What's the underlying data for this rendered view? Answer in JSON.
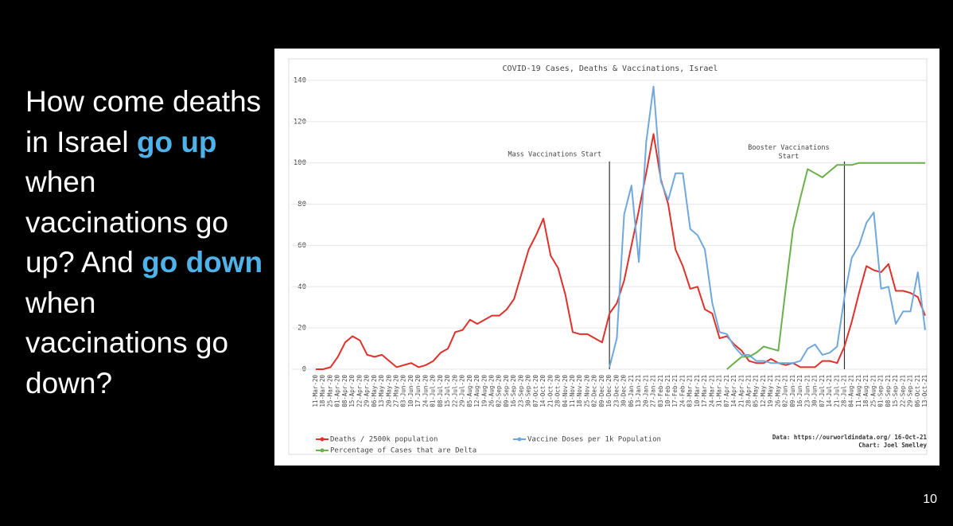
{
  "slide": {
    "headline": [
      {
        "text": "How come deaths in Israel ",
        "highlight": false
      },
      {
        "text": "go up",
        "highlight": true
      },
      {
        "text": " when vaccinations go up? And ",
        "highlight": false
      },
      {
        "text": "go down",
        "highlight": true
      },
      {
        "text": " when vaccinations go down?",
        "highlight": false
      }
    ],
    "page_number": "10"
  },
  "chart_data": {
    "type": "line",
    "title": "COVID-19 Cases, Deaths & Vaccinations, Israel",
    "categories": [
      "11-Mar-20",
      "18-Mar-20",
      "25-Mar-20",
      "01-Apr-20",
      "08-Apr-20",
      "15-Apr-20",
      "22-Apr-20",
      "29-Apr-20",
      "06-May-20",
      "13-May-20",
      "20-May-20",
      "27-May-20",
      "03-Jun-20",
      "10-Jun-20",
      "17-Jun-20",
      "24-Jun-20",
      "01-Jul-20",
      "08-Jul-20",
      "15-Jul-20",
      "22-Jul-20",
      "29-Jul-20",
      "05-Aug-20",
      "12-Aug-20",
      "19-Aug-20",
      "26-Aug-20",
      "02-Sep-20",
      "09-Sep-20",
      "16-Sep-20",
      "23-Sep-20",
      "30-Sep-20",
      "07-Oct-20",
      "14-Oct-20",
      "21-Oct-20",
      "28-Oct-20",
      "04-Nov-20",
      "11-Nov-20",
      "18-Nov-20",
      "25-Nov-20",
      "02-Dec-20",
      "09-Dec-20",
      "16-Dec-20",
      "23-Dec-20",
      "30-Dec-20",
      "06-Jan-21",
      "13-Jan-21",
      "20-Jan-21",
      "27-Jan-21",
      "03-Feb-21",
      "10-Feb-21",
      "17-Feb-21",
      "24-Feb-21",
      "03-Mar-21",
      "10-Mar-21",
      "17-Mar-21",
      "24-Mar-21",
      "31-Mar-21",
      "07-Apr-21",
      "14-Apr-21",
      "21-Apr-21",
      "28-Apr-21",
      "05-May-21",
      "12-May-21",
      "19-May-21",
      "26-May-21",
      "02-Jun-21",
      "09-Jun-21",
      "16-Jun-21",
      "23-Jun-21",
      "30-Jun-21",
      "07-Jul-21",
      "14-Jul-21",
      "21-Jul-21",
      "28-Jul-21",
      "04-Aug-21",
      "11-Aug-21",
      "18-Aug-21",
      "25-Aug-21",
      "01-Sep-21",
      "08-Sep-21",
      "15-Sep-21",
      "22-Sep-21",
      "29-Sep-21",
      "06-Oct-21",
      "13-Oct-21"
    ],
    "series": [
      {
        "name": "Deaths / 2500k population",
        "color": "#e0302a",
        "values": [
          0,
          0,
          1,
          6,
          13,
          16,
          14,
          7,
          6,
          7,
          4,
          1,
          2,
          3,
          1,
          2,
          4,
          8,
          10,
          18,
          19,
          24,
          22,
          24,
          26,
          26,
          29,
          34,
          46,
          58,
          65,
          73,
          55,
          49,
          36,
          18,
          17,
          17,
          15,
          13,
          27,
          32,
          43,
          60,
          77,
          95,
          114,
          92,
          80,
          58,
          50,
          39,
          40,
          29,
          27,
          15,
          16,
          12,
          9,
          4,
          3,
          3,
          5,
          3,
          2,
          3,
          1,
          1,
          1,
          4,
          4,
          3,
          11,
          23,
          37,
          50,
          48,
          47,
          51,
          38,
          38,
          37,
          35,
          26
        ]
      },
      {
        "name": "Vaccine Doses per 1k Population",
        "color": "#6fa8dc",
        "values": [
          null,
          null,
          null,
          null,
          null,
          null,
          null,
          null,
          null,
          null,
          null,
          null,
          null,
          null,
          null,
          null,
          null,
          null,
          null,
          null,
          null,
          null,
          null,
          null,
          null,
          null,
          null,
          null,
          null,
          null,
          null,
          null,
          null,
          null,
          null,
          null,
          null,
          null,
          null,
          null,
          1,
          15,
          75,
          89,
          52,
          110,
          137,
          91,
          82,
          95,
          95,
          68,
          65,
          58,
          32,
          18,
          17,
          11,
          7,
          7,
          4,
          4,
          3,
          3,
          3,
          3,
          4,
          10,
          12,
          7,
          8,
          11,
          35,
          54,
          60,
          71,
          76,
          39,
          40,
          22,
          28,
          28,
          47,
          19
        ]
      },
      {
        "name": "Percentage of Cases that are Delta",
        "color": "#6ab04c",
        "values": [
          null,
          null,
          null,
          null,
          null,
          null,
          null,
          null,
          null,
          null,
          null,
          null,
          null,
          null,
          null,
          null,
          null,
          null,
          null,
          null,
          null,
          null,
          null,
          null,
          null,
          null,
          null,
          null,
          null,
          null,
          null,
          null,
          null,
          null,
          null,
          null,
          null,
          null,
          null,
          null,
          null,
          null,
          null,
          null,
          null,
          null,
          null,
          null,
          null,
          null,
          null,
          null,
          null,
          null,
          null,
          null,
          0,
          3,
          6,
          6,
          8,
          11,
          10,
          9,
          39,
          68,
          83,
          97,
          95,
          93,
          96,
          99,
          99,
          99,
          100,
          100,
          100,
          100,
          100,
          100,
          100,
          100,
          100,
          100
        ]
      }
    ],
    "ylim": [
      0,
      140
    ],
    "yticks": [
      0,
      20,
      40,
      60,
      80,
      100,
      120,
      140
    ],
    "grid": true,
    "annotations": [
      {
        "text": "Mass Vaccinations Start",
        "x": "16-Dec-20"
      },
      {
        "text": "Booster Vaccinations Start",
        "x": "28-Jul-21"
      }
    ],
    "source": [
      "Data: https://ourworldindata.org/ 16-Oct-21",
      "Chart: Joel Smelley"
    ]
  }
}
